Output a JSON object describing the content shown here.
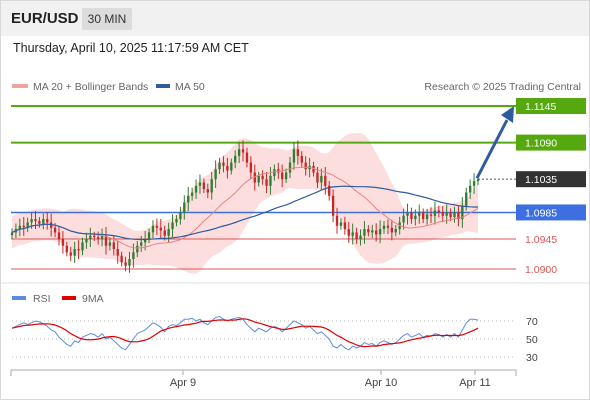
{
  "header": {
    "symbol": "EUR/USD",
    "timeframe": "30 MIN"
  },
  "datetime": "Thursday, April 10, 2025 11:17:59 AM CET",
  "legend": {
    "ma20": "MA 20 + Bollinger Bands",
    "ma50": "MA 50",
    "credit": "Research © 2025 Trading Central"
  },
  "rsi_legend": {
    "rsi": "RSI",
    "ma": "9MA"
  },
  "colors": {
    "resistance": "#56a80f",
    "pivot": "#3d6fe0",
    "support": "#e05555",
    "current": "#333333",
    "bull_candle": "#2e7d32",
    "bear_candle": "#c62828",
    "bollinger": "#fdd8d8",
    "ma20": "#f08080",
    "ma50": "#2e5c9e",
    "rsi": "#5b8de0",
    "rsi_ma": "#e00000",
    "arrow": "#2e5c9e"
  },
  "levels": [
    {
      "value": 1.1145,
      "label": "1.1145",
      "kind": "resistance"
    },
    {
      "value": 1.109,
      "label": "1.1090",
      "kind": "resistance"
    },
    {
      "value": 1.1035,
      "label": "1.1035",
      "kind": "current"
    },
    {
      "value": 1.0985,
      "label": "1.0985",
      "kind": "pivot"
    },
    {
      "value": 1.0945,
      "label": "1.0945",
      "kind": "support"
    },
    {
      "value": 1.09,
      "label": "1.0900",
      "kind": "support"
    }
  ],
  "chart_data": {
    "type": "candlestick",
    "x_axis_labels": [
      "Apr 9",
      "Apr 10",
      "Apr 11"
    ],
    "price_range": [
      1.088,
      1.1165
    ],
    "ohlc_close": [
      1.0955,
      1.096,
      1.0965,
      1.0963,
      1.097,
      1.0975,
      1.0972,
      1.0968,
      1.0975,
      1.097,
      1.0962,
      1.0955,
      1.0945,
      1.0935,
      1.0925,
      1.092,
      1.093,
      1.0928,
      1.094,
      1.0945,
      1.095,
      1.0948,
      1.0945,
      1.095,
      1.0935,
      1.094,
      1.093,
      1.092,
      1.091,
      1.0905,
      1.0915,
      1.0925,
      1.0935,
      1.094,
      1.0945,
      1.0955,
      1.0965,
      1.0962,
      1.0958,
      1.095,
      1.096,
      1.097,
      1.0975,
      1.0985,
      1.1,
      1.101,
      1.1015,
      1.1025,
      1.103,
      1.102,
      1.1015,
      1.1035,
      1.105,
      1.106,
      1.1055,
      1.1048,
      1.106,
      1.107,
      1.108,
      1.1075,
      1.106,
      1.1045,
      1.103,
      1.104,
      1.1035,
      1.1025,
      1.104,
      1.105,
      1.1045,
      1.1035,
      1.1045,
      1.106,
      1.108,
      1.107,
      1.106,
      1.105,
      1.1055,
      1.1045,
      1.103,
      1.104,
      1.1025,
      1.101,
      1.098,
      1.0965,
      1.097,
      1.096,
      1.095,
      1.0955,
      1.0945,
      1.095,
      1.096,
      1.0955,
      1.0958,
      1.0952,
      1.096,
      1.0965,
      1.0962,
      1.0955,
      1.096,
      1.097,
      1.098,
      1.0985,
      1.0975,
      1.098,
      1.0985,
      1.0975,
      1.0982,
      1.098,
      1.0988,
      1.0985,
      1.098,
      1.0985,
      1.0978,
      1.0985,
      1.0975,
      1.0995,
      1.1015,
      1.1025,
      1.1032,
      1.1035
    ],
    "rsi": [
      62,
      64,
      66,
      68,
      66,
      68,
      70,
      69,
      67,
      64,
      60,
      58,
      52,
      48,
      44,
      42,
      48,
      46,
      52,
      54,
      56,
      55,
      52,
      56,
      50,
      52,
      48,
      44,
      40,
      38,
      44,
      50,
      56,
      58,
      60,
      64,
      68,
      66,
      63,
      58,
      64,
      66,
      65,
      68,
      72,
      72,
      73,
      70,
      72,
      68,
      66,
      70,
      74,
      75,
      72,
      70,
      72,
      73,
      74,
      72,
      66,
      62,
      58,
      62,
      60,
      58,
      62,
      64,
      62,
      58,
      62,
      66,
      70,
      68,
      66,
      62,
      64,
      60,
      56,
      58,
      54,
      50,
      42,
      40,
      44,
      40,
      38,
      42,
      40,
      42,
      46,
      44,
      45,
      42,
      46,
      48,
      46,
      44,
      46,
      50,
      54,
      56,
      52,
      54,
      56,
      52,
      54,
      53,
      56,
      55,
      52,
      55,
      52,
      56,
      52,
      60,
      68,
      72,
      72,
      71
    ],
    "rsi_ticks": [
      70,
      50,
      30
    ]
  }
}
